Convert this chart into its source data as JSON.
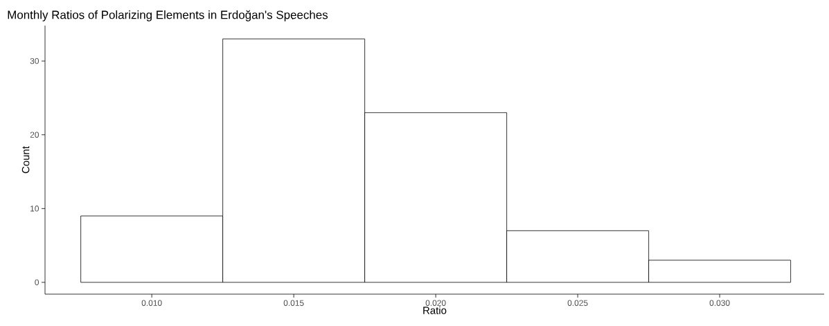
{
  "chart_data": {
    "type": "histogram",
    "title": "Monthly Ratios of Polarizing Elements in Erdoğan's Speeches",
    "xlabel": "Ratio",
    "ylabel": "Count",
    "bins": [
      0.0075,
      0.0125,
      0.0175,
      0.0225,
      0.0275,
      0.0325
    ],
    "values": [
      9,
      33,
      23,
      7,
      3
    ],
    "color": "#ffffff",
    "xlim": [
      0.00624,
      0.03368
    ],
    "ylim": [
      -1.6,
      34.8
    ],
    "xticks": [
      {
        "value": 0.01,
        "label": "0.010"
      },
      {
        "value": 0.015,
        "label": "0.015"
      },
      {
        "value": 0.02,
        "label": "0.020"
      },
      {
        "value": 0.025,
        "label": "0.025"
      },
      {
        "value": 0.03,
        "label": "0.030"
      }
    ],
    "yticks": [
      0,
      10,
      20,
      30
    ]
  }
}
